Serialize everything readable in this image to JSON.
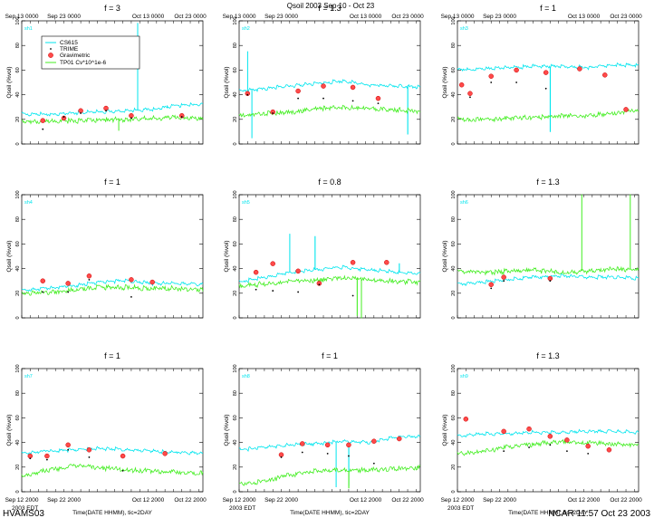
{
  "figure": {
    "title": "Qsoil 2003 Sep 10 - Oct 23",
    "footer_left": "HVAMS03",
    "footer_right": "NCAR 11:57 Oct 23 2003",
    "ylabel": "Qsoil (%vol)",
    "xlabel": "Time(DATE HHMM), tic=2DAY",
    "time_zone_label": "2003 EDT",
    "ylim": [
      0,
      100
    ],
    "yticks": [
      "0",
      "20",
      "40",
      "60",
      "80",
      "100"
    ],
    "colors": {
      "cs615": "#00e5ee",
      "trime": "#000000",
      "gravimetric": "#ff4a4a",
      "tp01": "#44ee22",
      "axis": "#000000"
    }
  },
  "legend": {
    "entries": [
      {
        "label": "CS615",
        "kind": "line",
        "color": "#00e5ee"
      },
      {
        "label": "TRIME",
        "kind": "point",
        "color": "#000000"
      },
      {
        "label": "Gravimetric",
        "kind": "circle",
        "color": "#ff4a4a"
      },
      {
        "label": "TP01 Cv*10^1e-6",
        "kind": "line",
        "color": "#44ee22"
      }
    ]
  },
  "chart_data": [
    {
      "type": "line",
      "panel": 0,
      "title": "f = 3",
      "site": "sh1",
      "xticks": [
        "Sep 13 0000",
        "Sep 23 0000",
        "Oct 13 0000",
        "Oct 23 0000"
      ],
      "xtick_pos": "top",
      "x_range_days": [
        0,
        43
      ],
      "xtick_days": [
        0,
        10,
        30,
        40
      ],
      "series": [
        {
          "name": "CS615",
          "base": [
            23,
            23,
            24,
            25,
            26,
            27,
            30,
            31
          ],
          "spikes": [
            [
              27.5,
              98
            ],
            [
              34.5,
              31
            ]
          ]
        },
        {
          "name": "TP01 Cv*10^1e-6",
          "base": [
            17,
            18,
            18,
            19,
            19,
            20,
            21,
            20
          ],
          "spikes": [
            [
              23,
              11
            ]
          ]
        },
        {
          "name": "Gravimetric",
          "points": [
            [
              5,
              19
            ],
            [
              10,
              21
            ],
            [
              14,
              27
            ],
            [
              20,
              29
            ],
            [
              26,
              23
            ],
            [
              38,
              23
            ]
          ]
        },
        {
          "name": "TRIME",
          "points": [
            [
              5,
              12
            ],
            [
              10,
              22
            ],
            [
              14,
              25
            ],
            [
              20,
              27
            ],
            [
              26,
              21
            ],
            [
              38,
              22
            ]
          ]
        }
      ]
    },
    {
      "type": "line",
      "panel": 1,
      "title": "f = 1.3",
      "site": "sh2",
      "xticks": [
        "Sep 13 0000",
        "Sep 23 0000",
        "Oct 13 0000",
        "Oct 23 0000"
      ],
      "xtick_pos": "top",
      "x_range_days": [
        0,
        43
      ],
      "xtick_days": [
        0,
        10,
        30,
        40
      ],
      "series": [
        {
          "name": "CS615",
          "base": [
            42,
            44,
            46,
            48,
            50,
            47,
            46,
            45
          ],
          "spikes": [
            [
              2,
              75
            ],
            [
              3,
              5
            ],
            [
              40,
              8
            ]
          ]
        },
        {
          "name": "TP01 Cv*10^1e-6",
          "base": [
            22,
            24,
            25,
            28,
            29,
            28,
            27,
            26
          ],
          "spikes": []
        },
        {
          "name": "Gravimetric",
          "points": [
            [
              2,
              41
            ],
            [
              8,
              26
            ],
            [
              14,
              43
            ],
            [
              20,
              47
            ],
            [
              27,
              46
            ],
            [
              33,
              37
            ]
          ]
        },
        {
          "name": "TRIME",
          "points": [
            [
              2,
              40
            ],
            [
              8,
              25
            ],
            [
              14,
              37
            ],
            [
              20,
              37
            ],
            [
              27,
              35
            ],
            [
              33,
              33
            ]
          ]
        }
      ]
    },
    {
      "type": "line",
      "panel": 2,
      "title": "f = 1",
      "site": "sh3",
      "xticks": [
        "Sep 13 0000",
        "Sep 23 0000",
        "Oct 13 0000",
        "Oct 23 0000"
      ],
      "xtick_pos": "top",
      "x_range_days": [
        0,
        43
      ],
      "xtick_days": [
        0,
        10,
        30,
        40
      ],
      "series": [
        {
          "name": "CS615",
          "base": [
            59,
            60,
            61,
            62,
            62,
            61,
            63,
            63
          ],
          "spikes": [
            [
              22,
              10
            ]
          ]
        },
        {
          "name": "TP01 Cv*10^1e-6",
          "base": [
            19,
            19,
            20,
            21,
            22,
            22,
            24,
            27
          ],
          "spikes": []
        },
        {
          "name": "Gravimetric",
          "points": [
            [
              1,
              48
            ],
            [
              3,
              41
            ],
            [
              8,
              55
            ],
            [
              14,
              60
            ],
            [
              21,
              58
            ],
            [
              29,
              61
            ],
            [
              35,
              56
            ],
            [
              40,
              28
            ]
          ]
        },
        {
          "name": "TRIME",
          "points": [
            [
              3,
              38
            ],
            [
              8,
              50
            ],
            [
              14,
              50
            ],
            [
              21,
              45
            ]
          ]
        }
      ]
    },
    {
      "type": "line",
      "panel": 3,
      "title": "f = 1",
      "site": "sh4",
      "xticks": [],
      "xtick_pos": "none",
      "x_range_days": [
        0,
        43
      ],
      "xtick_days": [],
      "series": [
        {
          "name": "CS615",
          "base": [
            21,
            23,
            25,
            28,
            29,
            27,
            27,
            26
          ],
          "spikes": []
        },
        {
          "name": "TP01 Cv*10^1e-6",
          "base": [
            19,
            20,
            22,
            24,
            24,
            23,
            23,
            22
          ],
          "spikes": []
        },
        {
          "name": "Gravimetric",
          "points": [
            [
              5,
              30
            ],
            [
              11,
              28
            ],
            [
              16,
              34
            ],
            [
              26,
              31
            ],
            [
              31,
              29
            ]
          ]
        },
        {
          "name": "TRIME",
          "points": [
            [
              5,
              21
            ],
            [
              11,
              21
            ],
            [
              16,
              31
            ],
            [
              26,
              17
            ]
          ]
        }
      ]
    },
    {
      "type": "line",
      "panel": 4,
      "title": "f = 0.8",
      "site": "sh5",
      "xticks": [],
      "xtick_pos": "none",
      "x_range_days": [
        0,
        43
      ],
      "xtick_days": [],
      "series": [
        {
          "name": "CS615",
          "base": [
            28,
            32,
            36,
            38,
            40,
            38,
            36,
            35
          ],
          "spikes": [
            [
              12,
              68
            ],
            [
              18,
              66
            ],
            [
              38,
              44
            ]
          ]
        },
        {
          "name": "TP01 Cv*10^1e-6",
          "base": [
            25,
            27,
            29,
            30,
            32,
            30,
            29,
            28
          ],
          "spikes": [
            [
              28,
              2
            ],
            [
              29,
              0
            ]
          ]
        },
        {
          "name": "Gravimetric",
          "points": [
            [
              4,
              37
            ],
            [
              8,
              44
            ],
            [
              14,
              38
            ],
            [
              19,
              28
            ],
            [
              27,
              45
            ],
            [
              35,
              45
            ]
          ]
        },
        {
          "name": "TRIME",
          "points": [
            [
              4,
              23
            ],
            [
              8,
              22
            ],
            [
              14,
              21
            ],
            [
              19,
              27
            ],
            [
              27,
              18
            ]
          ]
        }
      ]
    },
    {
      "type": "line",
      "panel": 5,
      "title": "f = 1.3",
      "site": "sh6",
      "xticks": [],
      "xtick_pos": "none",
      "x_range_days": [
        0,
        43
      ],
      "xtick_days": [],
      "series": [
        {
          "name": "CS615",
          "base": [
            26,
            28,
            30,
            32,
            33,
            32,
            32,
            31
          ],
          "spikes": []
        },
        {
          "name": "TP01 Cv*10^1e-6",
          "base": [
            37,
            36,
            37,
            38,
            36,
            37,
            39,
            38
          ],
          "spikes": [
            [
              29.5,
              100
            ],
            [
              41,
              100
            ]
          ]
        },
        {
          "name": "Gravimetric",
          "points": [
            [
              8,
              27
            ],
            [
              11,
              33
            ],
            [
              22,
              32
            ]
          ]
        },
        {
          "name": "TRIME",
          "points": [
            [
              8,
              24
            ],
            [
              11,
              30
            ],
            [
              22,
              30
            ]
          ]
        }
      ]
    },
    {
      "type": "line",
      "panel": 6,
      "title": "f = 1",
      "site": "sh7",
      "xticks": [
        "Sep 12 2000",
        "Sep 22 2000",
        "Oct 12 2000",
        "Oct 22 2000"
      ],
      "xtick_pos": "bottom",
      "x_range_days": [
        0,
        43
      ],
      "xtick_days": [
        0,
        10,
        30,
        40
      ],
      "show_time_zone": true,
      "series": [
        {
          "name": "CS615",
          "base": [
            30,
            32,
            33,
            34,
            33,
            32,
            31,
            30
          ],
          "spikes": []
        },
        {
          "name": "TP01 Cv*10^1e-6",
          "base": [
            12,
            17,
            20,
            19,
            17,
            16,
            15,
            14
          ],
          "spikes": []
        },
        {
          "name": "Gravimetric",
          "points": [
            [
              2,
              29
            ],
            [
              6,
              29
            ],
            [
              11,
              38
            ],
            [
              16,
              34
            ],
            [
              24,
              29
            ],
            [
              34,
              31
            ]
          ]
        },
        {
          "name": "TRIME",
          "points": [
            [
              2,
              27
            ],
            [
              6,
              26
            ],
            [
              11,
              34
            ],
            [
              16,
              28
            ],
            [
              24,
              17
            ]
          ]
        }
      ]
    },
    {
      "type": "line",
      "panel": 7,
      "title": "f = 1",
      "site": "sh8",
      "xticks": [
        "Sep 12 2000",
        "Sep 22 2000",
        "Oct 12 2000",
        "Oct 22 2000"
      ],
      "xtick_pos": "bottom",
      "x_range_days": [
        0,
        43
      ],
      "xtick_days": [
        0,
        10,
        30,
        40
      ],
      "show_time_zone": true,
      "series": [
        {
          "name": "CS615",
          "base": [
            33,
            35,
            37,
            38,
            40,
            39,
            43,
            44
          ],
          "spikes": [
            [
              23,
              4
            ],
            [
              26,
              5
            ]
          ]
        },
        {
          "name": "TP01 Cv*10^1e-6",
          "base": [
            5,
            8,
            13,
            16,
            17,
            17,
            18,
            19
          ],
          "spikes": [
            [
              26,
              3
            ]
          ]
        },
        {
          "name": "Gravimetric",
          "points": [
            [
              10,
              30
            ],
            [
              15,
              39
            ],
            [
              21,
              38
            ],
            [
              26,
              38
            ],
            [
              32,
              41
            ],
            [
              38,
              43
            ]
          ]
        },
        {
          "name": "TRIME",
          "points": [
            [
              10,
              28
            ],
            [
              15,
              32
            ],
            [
              21,
              31
            ],
            [
              26,
              29
            ],
            [
              32,
              23
            ]
          ]
        }
      ]
    },
    {
      "type": "line",
      "panel": 8,
      "title": "f = 1.3",
      "site": "sh9",
      "xticks": [
        "Sep 12 2000",
        "Sep 22 2000",
        "Oct 12 2000",
        "Oct 22 2000"
      ],
      "xtick_pos": "bottom",
      "x_range_days": [
        0,
        43
      ],
      "xtick_days": [
        0,
        10,
        30,
        40
      ],
      "show_time_zone": true,
      "series": [
        {
          "name": "CS615",
          "base": [
            44,
            46,
            46,
            47,
            47,
            48,
            48,
            47
          ],
          "spikes": []
        },
        {
          "name": "TP01 Cv*10^1e-6",
          "base": [
            30,
            32,
            36,
            38,
            40,
            39,
            38,
            37
          ],
          "spikes": []
        },
        {
          "name": "Gravimetric",
          "points": [
            [
              2,
              59
            ],
            [
              11,
              49
            ],
            [
              17,
              51
            ],
            [
              22,
              45
            ],
            [
              26,
              42
            ],
            [
              31,
              37
            ],
            [
              36,
              34
            ]
          ]
        },
        {
          "name": "TRIME",
          "points": [
            [
              11,
              33
            ],
            [
              17,
              36
            ],
            [
              22,
              38
            ],
            [
              26,
              33
            ],
            [
              31,
              31
            ]
          ]
        }
      ]
    }
  ]
}
